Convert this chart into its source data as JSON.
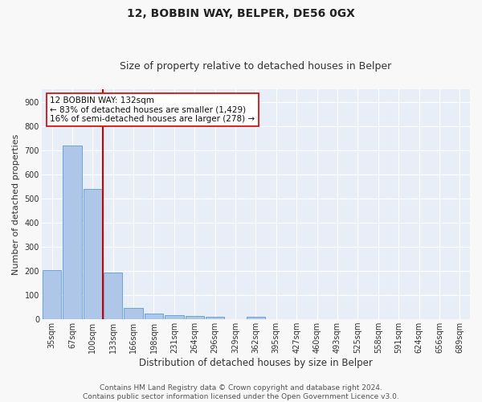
{
  "title1": "12, BOBBIN WAY, BELPER, DE56 0GX",
  "title2": "Size of property relative to detached houses in Belper",
  "xlabel": "Distribution of detached houses by size in Belper",
  "ylabel": "Number of detached properties",
  "categories": [
    "35sqm",
    "67sqm",
    "100sqm",
    "133sqm",
    "166sqm",
    "198sqm",
    "231sqm",
    "264sqm",
    "296sqm",
    "329sqm",
    "362sqm",
    "395sqm",
    "427sqm",
    "460sqm",
    "493sqm",
    "525sqm",
    "558sqm",
    "591sqm",
    "624sqm",
    "656sqm",
    "689sqm"
  ],
  "values": [
    203,
    717,
    537,
    193,
    47,
    22,
    16,
    13,
    10,
    0,
    10,
    0,
    0,
    0,
    0,
    0,
    0,
    0,
    0,
    0,
    0
  ],
  "bar_color": "#aec6e8",
  "bar_edge_color": "#5b9bd5",
  "bg_color": "#e8eef8",
  "grid_color": "#ffffff",
  "vline_x": 2.5,
  "vline_color": "#cc0000",
  "annotation_line1": "12 BOBBIN WAY: 132sqm",
  "annotation_line2": "← 83% of detached houses are smaller (1,429)",
  "annotation_line3": "16% of semi-detached houses are larger (278) →",
  "annotation_box_color": "#ffffff",
  "annotation_box_edge": "#cc0000",
  "ylim": [
    0,
    950
  ],
  "yticks": [
    0,
    100,
    200,
    300,
    400,
    500,
    600,
    700,
    800,
    900
  ],
  "footer": "Contains HM Land Registry data © Crown copyright and database right 2024.\nContains public sector information licensed under the Open Government Licence v3.0.",
  "title1_fontsize": 10,
  "title2_fontsize": 9,
  "xlabel_fontsize": 8.5,
  "ylabel_fontsize": 8,
  "tick_fontsize": 7,
  "annotation_fontsize": 7.5,
  "footer_fontsize": 6.5
}
